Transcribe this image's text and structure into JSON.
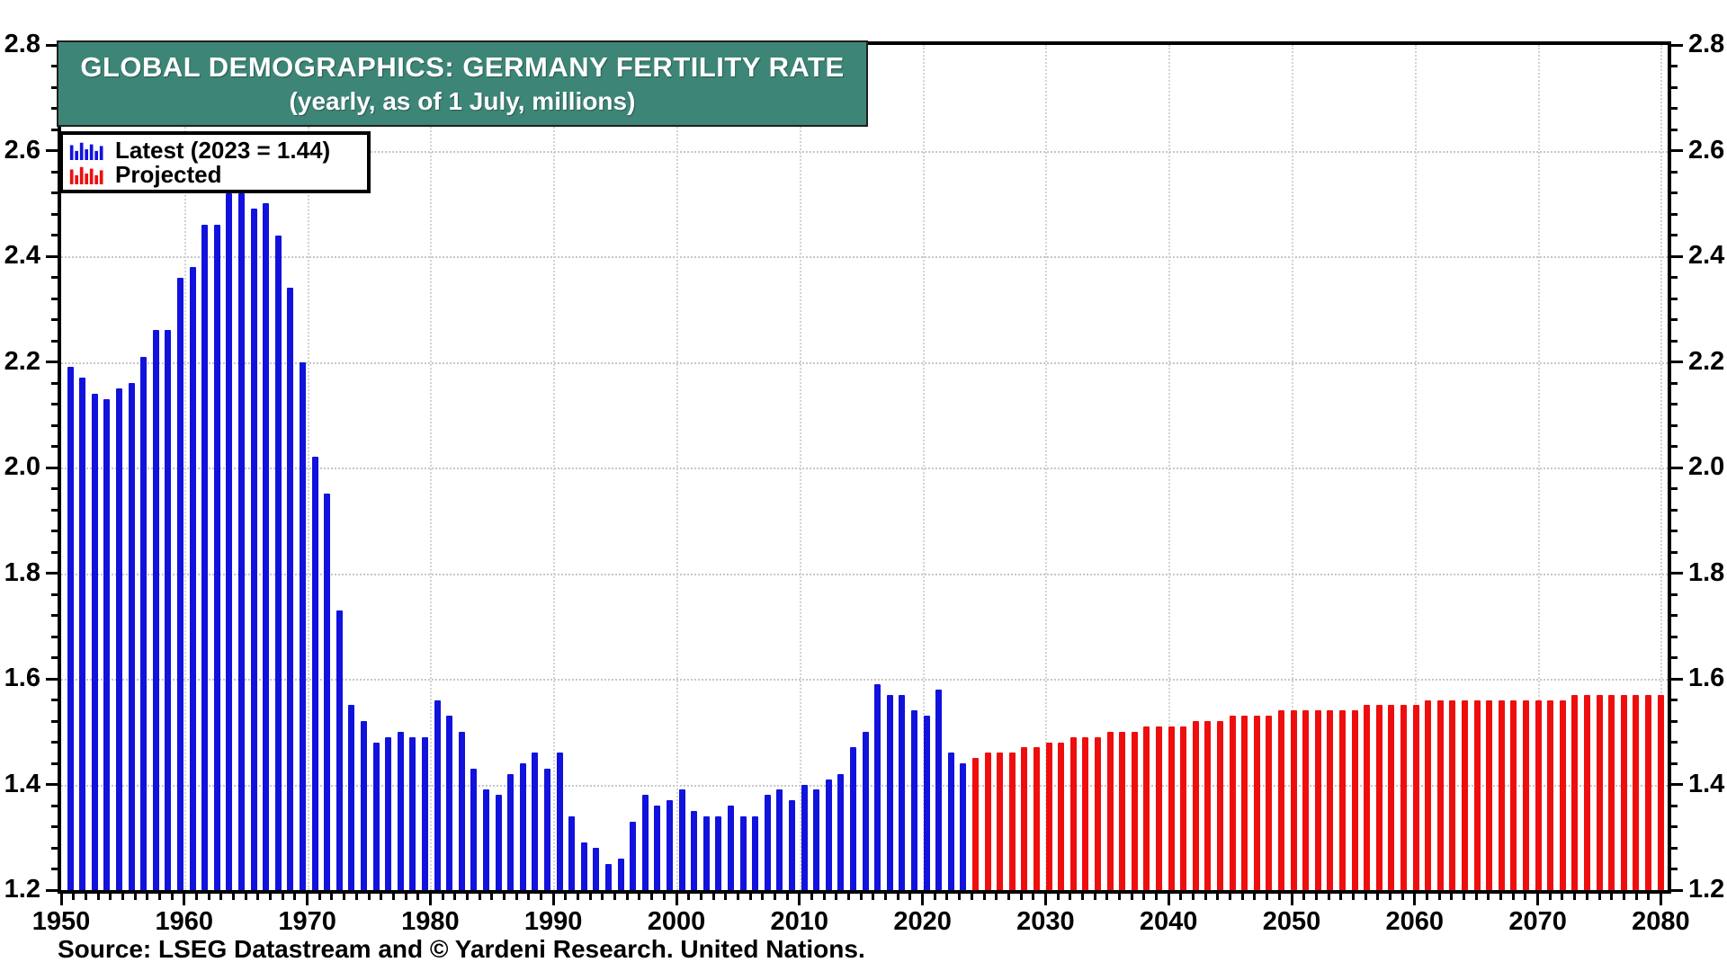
{
  "title": {
    "line1": "GLOBAL DEMOGRAPHICS: GERMANY FERTILITY RATE",
    "line2": "(yearly, as of 1 July, millions)",
    "bg_color": "#3d8677",
    "text_color": "#ffffff"
  },
  "legend": {
    "items": [
      {
        "label": "Latest (2023 = 1.44)",
        "color": "#1212dd",
        "icon": "blue-mini-bars-icon"
      },
      {
        "label": "Projected",
        "color": "#ee0e0e",
        "icon": "red-mini-bars-icon"
      }
    ]
  },
  "source_note": "Source: LSEG Datastream and © Yardeni Research. United Nations.",
  "colors": {
    "latest_bar": "#1212dd",
    "projected_bar": "#ee0e0e",
    "title_background": "#3d8677",
    "grid_line": "#c7c7c7",
    "axis": "#000000",
    "background": "#ffffff"
  },
  "chart_data": {
    "type": "bar",
    "title": "GLOBAL DEMOGRAPHICS: GERMANY FERTILITY RATE",
    "subtitle": "(yearly, as of 1 July, millions)",
    "xlabel": "",
    "ylabel": "",
    "ylim": [
      1.2,
      2.8
    ],
    "y_major_step": 0.2,
    "y_minor_step": 0.04,
    "x_start_year": 1950,
    "x_end_year": 2080,
    "x_minor_step": 1,
    "x_label_step": 10,
    "grid": true,
    "legend_position": "top-left",
    "y_tick_labels": [
      "1.2",
      "1.4",
      "1.6",
      "1.8",
      "2.0",
      "2.2",
      "2.4",
      "2.6",
      "2.8"
    ],
    "x_tick_labels": [
      "1950",
      "1960",
      "1970",
      "1980",
      "1990",
      "2000",
      "2010",
      "2020",
      "2030",
      "2040",
      "2050",
      "2060",
      "2070",
      "2080"
    ],
    "series": [
      {
        "name": "Latest (2023 = 1.44)",
        "color": "#1212dd",
        "start_year": 1950,
        "values": [
          2.19,
          2.17,
          2.14,
          2.13,
          2.15,
          2.16,
          2.21,
          2.26,
          2.26,
          2.36,
          2.38,
          2.46,
          2.46,
          2.52,
          2.52,
          2.49,
          2.5,
          2.44,
          2.34,
          2.2,
          2.02,
          1.95,
          1.73,
          1.55,
          1.52,
          1.48,
          1.49,
          1.5,
          1.49,
          1.49,
          1.56,
          1.53,
          1.5,
          1.43,
          1.39,
          1.38,
          1.42,
          1.44,
          1.46,
          1.43,
          1.46,
          1.34,
          1.29,
          1.28,
          1.25,
          1.26,
          1.33,
          1.38,
          1.36,
          1.37,
          1.39,
          1.35,
          1.34,
          1.34,
          1.36,
          1.34,
          1.34,
          1.38,
          1.39,
          1.37,
          1.4,
          1.39,
          1.41,
          1.42,
          1.47,
          1.5,
          1.59,
          1.57,
          1.57,
          1.54,
          1.53,
          1.58,
          1.46,
          1.44
        ]
      },
      {
        "name": "Projected",
        "color": "#ee0e0e",
        "start_year": 2024,
        "values": [
          1.45,
          1.46,
          1.46,
          1.46,
          1.47,
          1.47,
          1.48,
          1.48,
          1.49,
          1.49,
          1.49,
          1.5,
          1.5,
          1.5,
          1.51,
          1.51,
          1.51,
          1.51,
          1.52,
          1.52,
          1.52,
          1.53,
          1.53,
          1.53,
          1.53,
          1.54,
          1.54,
          1.54,
          1.54,
          1.54,
          1.54,
          1.54,
          1.55,
          1.55,
          1.55,
          1.55,
          1.55,
          1.56,
          1.56,
          1.56,
          1.56,
          1.56,
          1.56,
          1.56,
          1.56,
          1.56,
          1.56,
          1.56,
          1.56,
          1.57,
          1.57,
          1.57,
          1.57,
          1.57,
          1.57,
          1.57,
          1.57
        ]
      }
    ]
  }
}
